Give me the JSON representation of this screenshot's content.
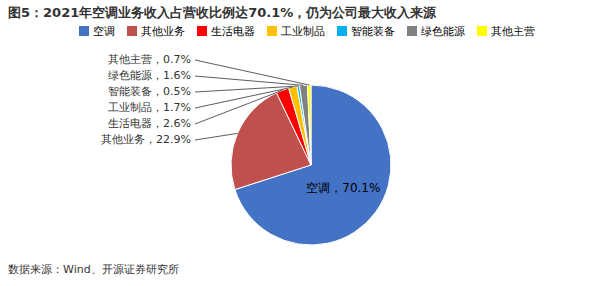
{
  "chart_data": {
    "type": "pie",
    "title": "图5：2021年空调业务收入占营收比例达70.1%，仍为公司最大收入来源",
    "footnote": "数据来源：Wind、开源证券研究所",
    "categories": [
      "空调",
      "其他业务",
      "生活电器",
      "工业制品",
      "智能装备",
      "绿色能源",
      "其他主营"
    ],
    "values": [
      70.1,
      22.9,
      2.6,
      1.7,
      0.5,
      1.6,
      0.7
    ],
    "colors": [
      "#4472C4",
      "#C0504D",
      "#FF0000",
      "#FFC000",
      "#00B0F0",
      "#808080",
      "#FFFF00"
    ],
    "data_labels": true,
    "value_labels": [
      "空调，70.1%",
      "其他业务，22.9%",
      "生活电器，2.6%",
      "工业制品，1.7%",
      "智能装备，0.5%",
      "绿色能源，1.6%",
      "其他主营，0.7%"
    ],
    "legend": "top"
  }
}
